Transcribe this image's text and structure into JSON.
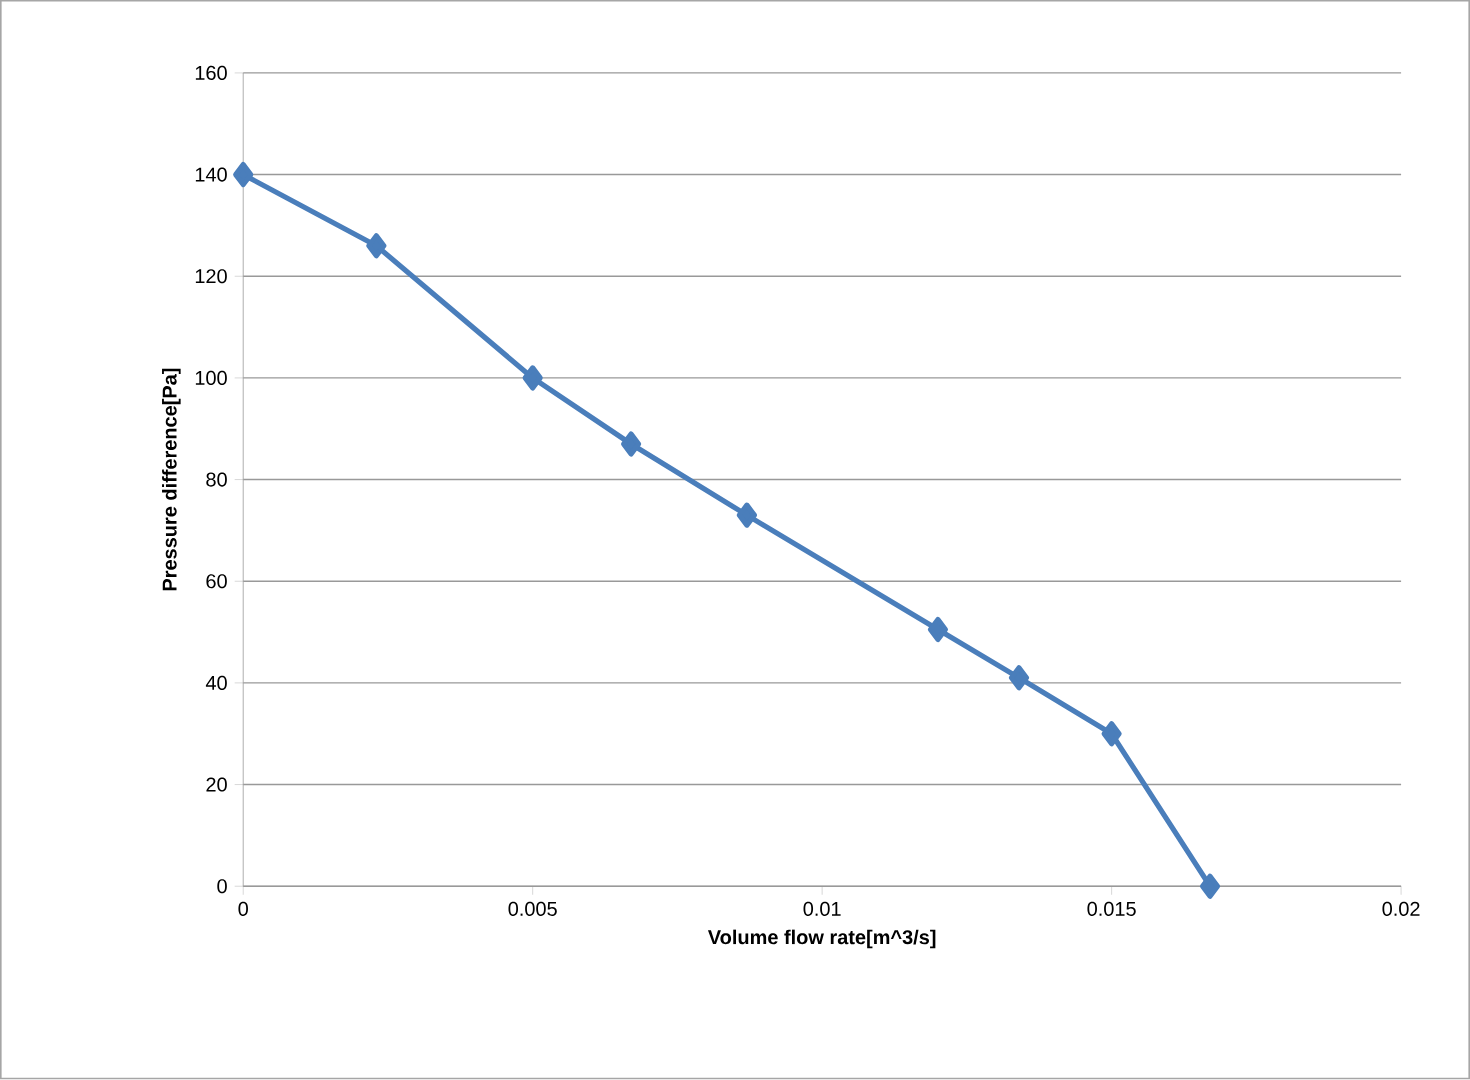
{
  "chart_data": {
    "type": "line",
    "xlabel": "Volume flow rate[m^3/s]",
    "ylabel": "Pressure difference[Pa]",
    "x": [
      0,
      0.0023,
      0.005,
      0.0067,
      0.0087,
      0.012,
      0.0134,
      0.015,
      0.0167
    ],
    "series": [
      {
        "color": "#4a7ebb",
        "values": [
          140,
          126,
          100,
          87,
          73,
          50.5,
          41,
          30,
          0
        ]
      }
    ],
    "xlim": [
      0,
      0.02
    ],
    "xticks": [
      0,
      0.005,
      0.01,
      0.015,
      0.02
    ],
    "ylim": [
      0,
      160
    ],
    "yticks": [
      0,
      20,
      40,
      60,
      80,
      100,
      120,
      140,
      160
    ],
    "grid": "y",
    "marker": "diamond",
    "line_style": "solid"
  }
}
